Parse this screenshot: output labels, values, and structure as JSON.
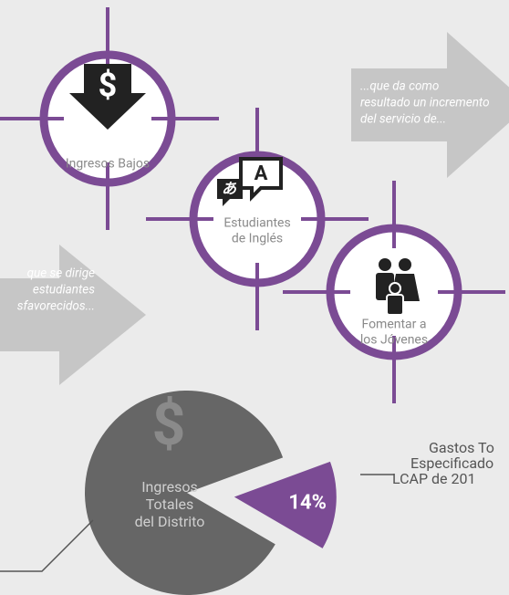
{
  "targets": [
    {
      "label": [
        "Ingresos Bajos"
      ]
    },
    {
      "label": [
        "Estudiantes",
        "de Inglés"
      ]
    },
    {
      "label": [
        "Fomentar a",
        "los Jóvenes"
      ]
    }
  ],
  "arrows": [
    {
      "lines": [
        "...que da como",
        "resultado un incremento",
        "del servicio de..."
      ]
    },
    {
      "lines": [
        "que se dirige",
        "estudiantes",
        "sfavorecidos..."
      ]
    }
  ],
  "pie": {
    "value": 14,
    "value_label": "14%",
    "center_label": [
      "Ingresos",
      "Totales",
      "del Distrito"
    ],
    "callout": [
      "Gastos To",
      "Especificado",
      "LCAP de 201"
    ]
  }
}
